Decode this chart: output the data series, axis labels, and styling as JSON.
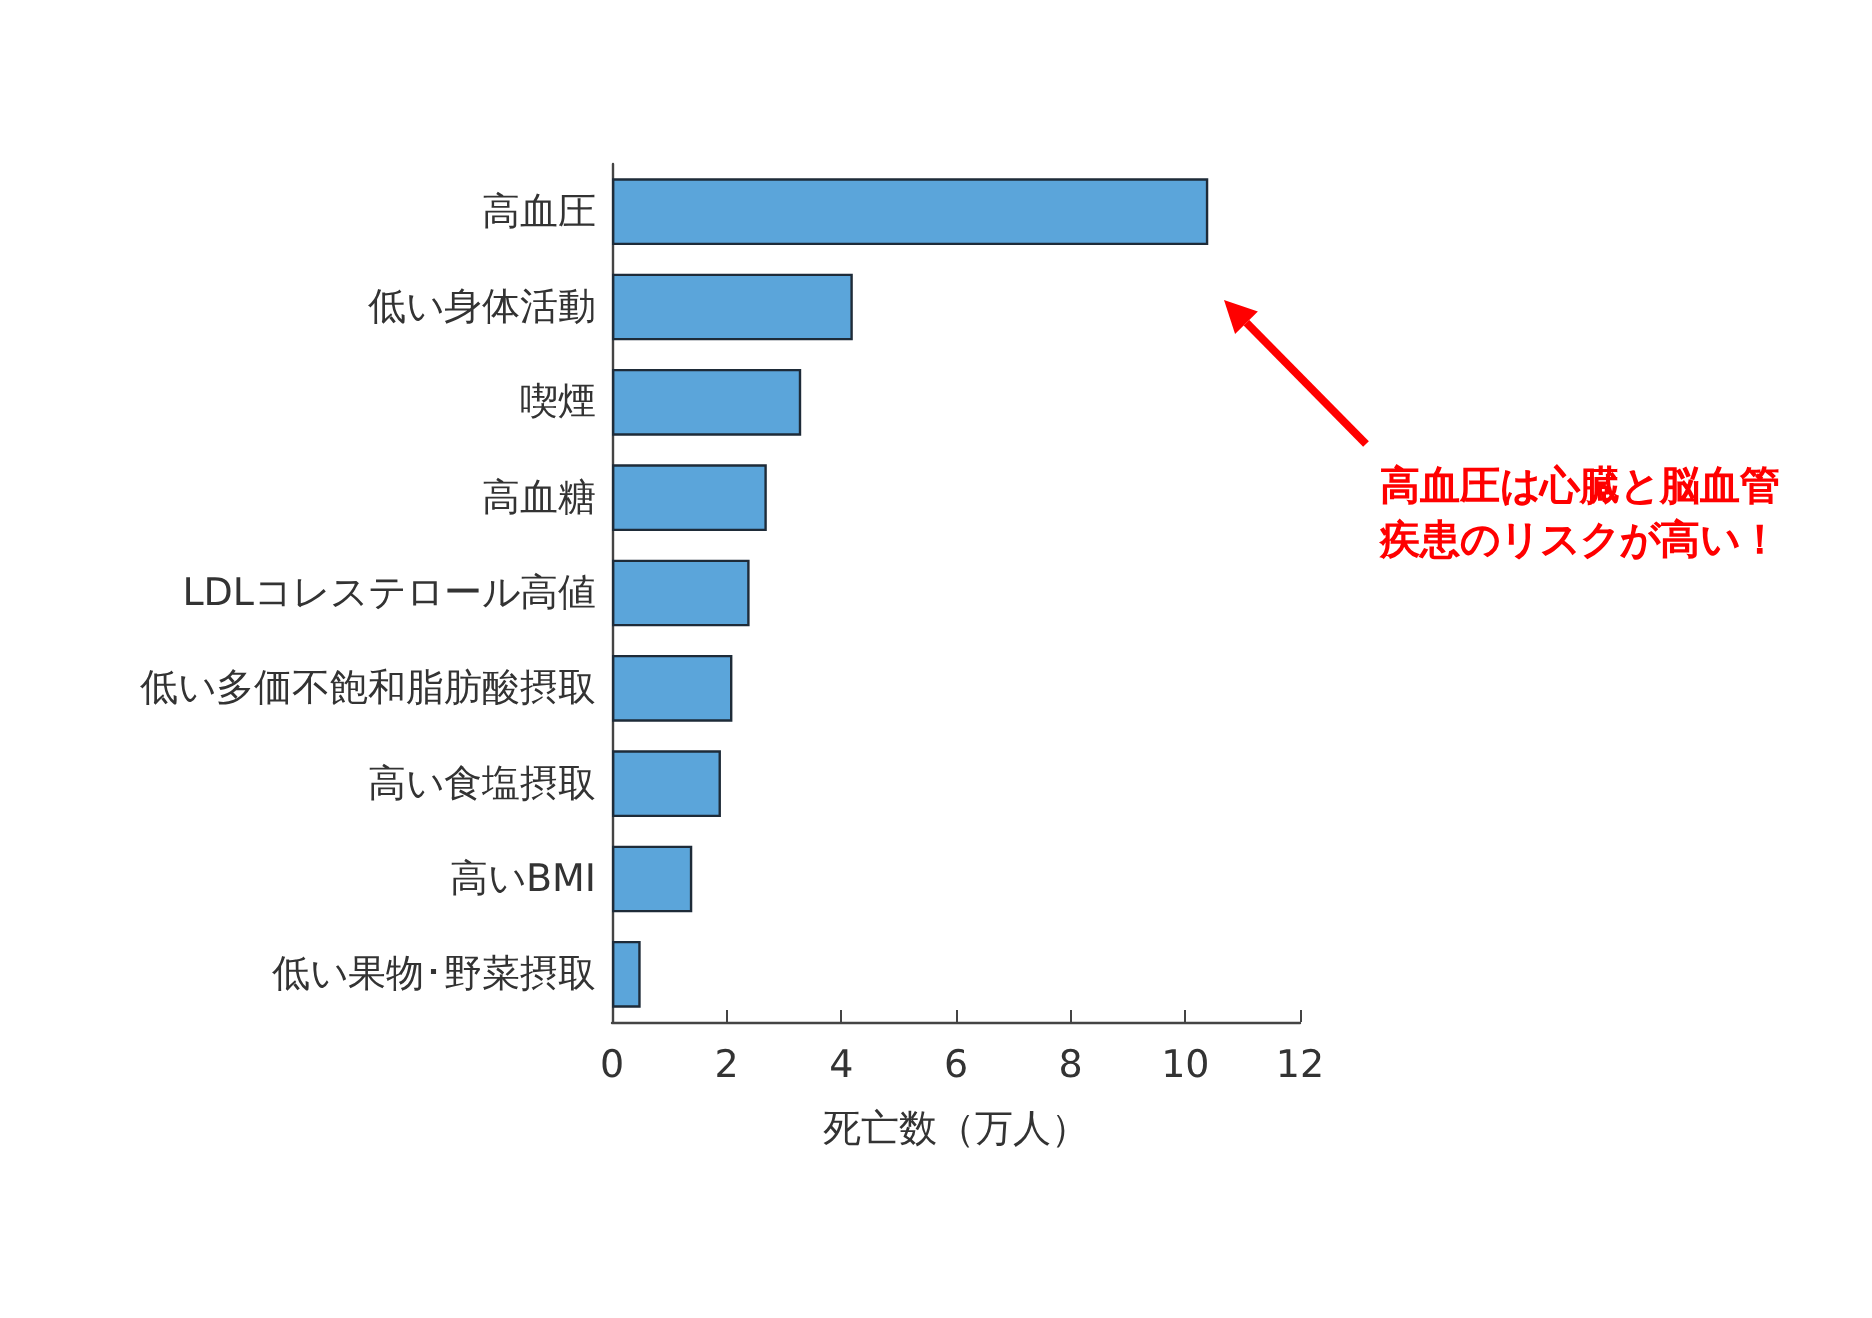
{
  "chart_data": {
    "type": "bar",
    "orientation": "horizontal",
    "categories": [
      "高血圧",
      "低い身体活動",
      "喫煙",
      "高血糖",
      "LDLコレステロール高値",
      "低い多価不飽和脂肪酸摂取",
      "高い食塩摂取",
      "高いBMI",
      "低い果物･野菜摂取"
    ],
    "values": [
      10.4,
      4.2,
      3.3,
      2.7,
      2.4,
      2.1,
      1.9,
      1.4,
      0.5
    ],
    "color": "#5ba5da",
    "xlabel": "死亡数（万人）",
    "xlim": [
      0,
      12
    ],
    "xticks": [
      0,
      2,
      4,
      6,
      8,
      10,
      12
    ],
    "grid": false,
    "annotations": [
      "高血圧は心臓と脳血管疾患のリスクが高い！"
    ]
  }
}
